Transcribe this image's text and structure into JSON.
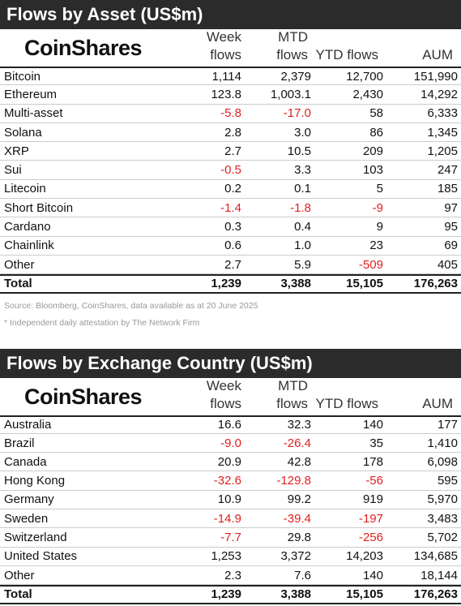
{
  "asset_section": {
    "title": "Flows by Asset (US$m)",
    "logo": "CoinShares",
    "headers": {
      "week_line1": "Week",
      "week_line2": "flows",
      "mtd_line1": "MTD",
      "mtd_line2": "flows",
      "ytd": "YTD flows",
      "aum": "AUM"
    },
    "rows": [
      {
        "name": "Bitcoin",
        "week": "1,114",
        "mtd": "2,379",
        "ytd": "12,700",
        "aum": "151,990"
      },
      {
        "name": "Ethereum",
        "week": "123.8",
        "mtd": "1,003.1",
        "ytd": "2,430",
        "aum": "14,292"
      },
      {
        "name": "Multi-asset",
        "week": "-5.8",
        "mtd": "-17.0",
        "ytd": "58",
        "aum": "6,333"
      },
      {
        "name": "Solana",
        "week": "2.8",
        "mtd": "3.0",
        "ytd": "86",
        "aum": "1,345"
      },
      {
        "name": "XRP",
        "week": "2.7",
        "mtd": "10.5",
        "ytd": "209",
        "aum": "1,205"
      },
      {
        "name": "Sui",
        "week": "-0.5",
        "mtd": "3.3",
        "ytd": "103",
        "aum": "247"
      },
      {
        "name": "Litecoin",
        "week": "0.2",
        "mtd": "0.1",
        "ytd": "5",
        "aum": "185"
      },
      {
        "name": "Short Bitcoin",
        "week": "-1.4",
        "mtd": "-1.8",
        "ytd": "-9",
        "aum": "97"
      },
      {
        "name": "Cardano",
        "week": "0.3",
        "mtd": "0.4",
        "ytd": "9",
        "aum": "95"
      },
      {
        "name": "Chainlink",
        "week": "0.6",
        "mtd": "1.0",
        "ytd": "23",
        "aum": "69"
      },
      {
        "name": "Other",
        "week": "2.7",
        "mtd": "5.9",
        "ytd": "-509",
        "aum": "405"
      }
    ],
    "total": {
      "name": "Total",
      "week": "1,239",
      "mtd": "3,388",
      "ytd": "15,105",
      "aum": "176,263"
    },
    "source_note": "Source: Bloomberg, CoinShares, data available as at 20 June 2025",
    "attestation_note": "* Independent daily attestation by The Network Firm"
  },
  "country_section": {
    "title": "Flows by Exchange Country (US$m)",
    "logo": "CoinShares",
    "headers": {
      "week_line1": "Week",
      "week_line2": "flows",
      "mtd_line1": "MTD",
      "mtd_line2": "flows",
      "ytd": "YTD flows",
      "aum": "AUM"
    },
    "rows": [
      {
        "name": "Australia",
        "week": "16.6",
        "mtd": "32.3",
        "ytd": "140",
        "aum": "177"
      },
      {
        "name": "Brazil",
        "week": "-9.0",
        "mtd": "-26.4",
        "ytd": "35",
        "aum": "1,410"
      },
      {
        "name": "Canada",
        "week": "20.9",
        "mtd": "42.8",
        "ytd": "178",
        "aum": "6,098"
      },
      {
        "name": "Hong Kong",
        "week": "-32.6",
        "mtd": "-129.8",
        "ytd": "-56",
        "aum": "595"
      },
      {
        "name": "Germany",
        "week": "10.9",
        "mtd": "99.2",
        "ytd": "919",
        "aum": "5,970"
      },
      {
        "name": "Sweden",
        "week": "-14.9",
        "mtd": "-39.4",
        "ytd": "-197",
        "aum": "3,483"
      },
      {
        "name": "Switzerland",
        "week": "-7.7",
        "mtd": "29.8",
        "ytd": "-256",
        "aum": "5,702"
      },
      {
        "name": "United States",
        "week": "1,253",
        "mtd": "3,372",
        "ytd": "14,203",
        "aum": "134,685"
      },
      {
        "name": "Other",
        "week": "2.3",
        "mtd": "7.6",
        "ytd": "140",
        "aum": "18,144"
      }
    ],
    "total": {
      "name": "Total",
      "week": "1,239",
      "mtd": "3,388",
      "ytd": "15,105",
      "aum": "176,263"
    }
  },
  "colors": {
    "title_bg": "#2b2b2b",
    "negative": "#e0201f",
    "note": "#999999"
  }
}
